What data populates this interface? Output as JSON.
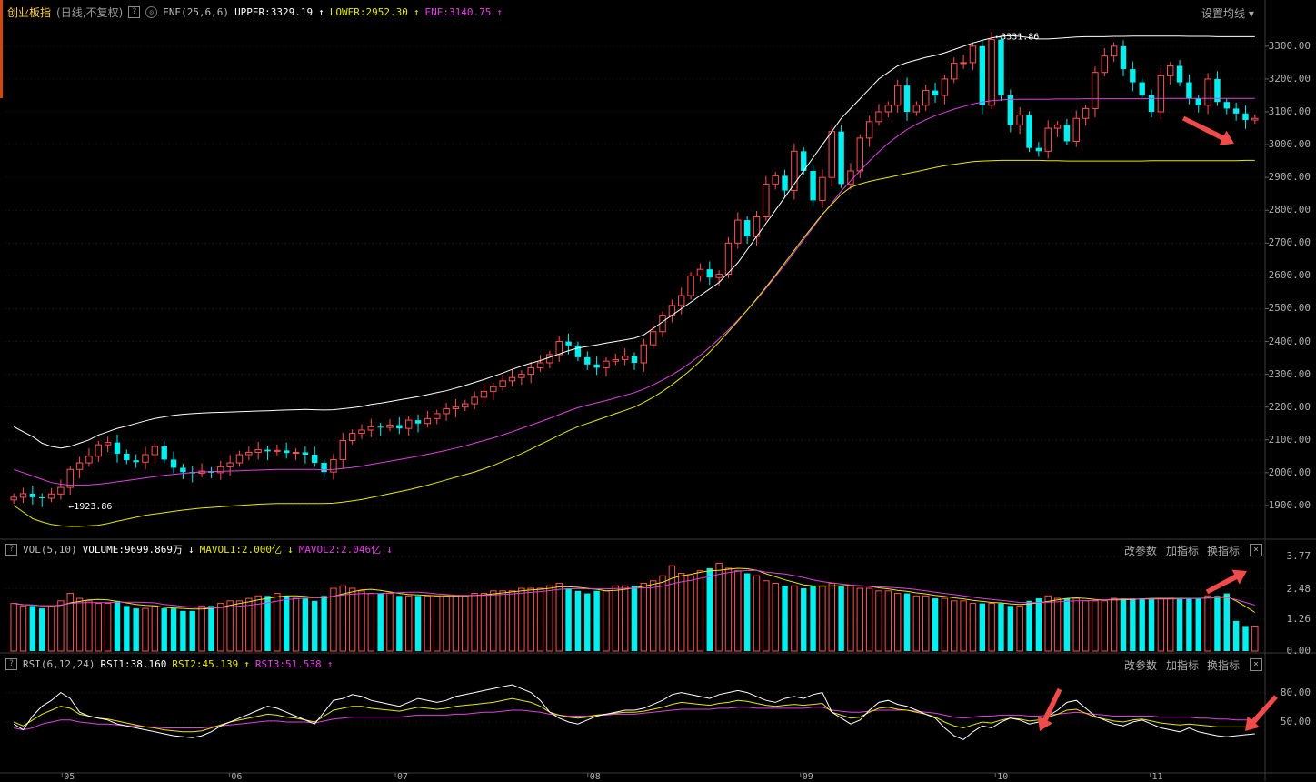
{
  "header": {
    "title": "创业板指",
    "subtitle": "(日线,不复权)",
    "indicator_name": "ENE(25,6,6)",
    "upper_label": "UPPER:3329.19",
    "lower_label": "LOWER:2952.30",
    "ene_label": "ENE:3140.75",
    "set_ma": "设置均线",
    "up_arrow": "↑",
    "down_arrow": "↓",
    "help": "?"
  },
  "vol_panel": {
    "name": "VOL(5,10)",
    "volume_label": "VOLUME:9699.869万",
    "mavol1_label": "MAVOL1:2.000亿",
    "mavol2_label": "MAVOL2:2.046亿",
    "tools": [
      "改参数",
      "加指标",
      "换指标"
    ],
    "close": "×",
    "y_ticks": [
      "3.77",
      "2.48",
      "1.26",
      "0.00"
    ]
  },
  "rsi_panel": {
    "name": "RSI(6,12,24)",
    "rsi1_label": "RSI1:38.160",
    "rsi2_label": "RSI2:45.139",
    "rsi3_label": "RSI3:51.538",
    "tools": [
      "改参数",
      "加指标",
      "换指标"
    ],
    "close": "×",
    "y_ticks": [
      "80.00",
      "50.00"
    ]
  },
  "price_y_ticks": [
    "3300.00",
    "3200.00",
    "3100.00",
    "3000.00",
    "2900.00",
    "2800.00",
    "2700.00",
    "2600.00",
    "2500.00",
    "2400.00",
    "2300.00",
    "2200.00",
    "2100.00",
    "2000.00",
    "1900.00"
  ],
  "x_ticks": [
    "05",
    "06",
    "07",
    "08",
    "09",
    "10",
    "11"
  ],
  "annotations": {
    "low_marker": "←1923.86",
    "high_marker": "←3331.86"
  },
  "colors": {
    "up": "#ff4f4f",
    "down": "#00f0f0",
    "upper": "#ffffff",
    "ene": "#e040e0",
    "lower": "#e8e800",
    "rsi1": "#ffffff",
    "rsi2": "#e8e800",
    "rsi3": "#e040e0",
    "grid": "#1e1e1e",
    "arrow": "#f04a4a"
  },
  "chart_data": {
    "type": "candlestick",
    "price_range": [
      1800,
      3380
    ],
    "x_months": [
      "05",
      "06",
      "07",
      "08",
      "09",
      "10",
      "11"
    ],
    "price_path": [
      1925,
      1936,
      1925,
      1922,
      1935,
      1955,
      2010,
      2030,
      2050,
      2085,
      2092,
      2058,
      2038,
      2032,
      2055,
      2080,
      2040,
      2015,
      2002,
      1998,
      2005,
      2000,
      2018,
      2030,
      2055,
      2062,
      2070,
      2065,
      2068,
      2060,
      2062,
      2055,
      2030,
      2002,
      2040,
      2098,
      2120,
      2130,
      2140,
      2138,
      2145,
      2135,
      2160,
      2150,
      2165,
      2180,
      2195,
      2200,
      2210,
      2230,
      2248,
      2262,
      2280,
      2290,
      2300,
      2320,
      2335,
      2360,
      2400,
      2388,
      2352,
      2330,
      2320,
      2340,
      2345,
      2355,
      2335,
      2390,
      2430,
      2480,
      2510,
      2540,
      2600,
      2620,
      2595,
      2605,
      2700,
      2770,
      2720,
      2780,
      2880,
      2905,
      2860,
      2980,
      2920,
      2830,
      2900,
      3040,
      2880,
      2920,
      3020,
      3070,
      3100,
      3120,
      3180,
      3100,
      3120,
      3165,
      3150,
      3200,
      3248,
      3250,
      3300,
      3120,
      3320,
      3150,
      3060,
      3090,
      2990,
      2980,
      3050,
      3060,
      3010,
      3080,
      3110,
      3220,
      3270,
      3300,
      3230,
      3190,
      3150,
      3100,
      3210,
      3240,
      3190,
      3140,
      3120,
      3200,
      3130,
      3110,
      3095,
      3075,
      3080
    ],
    "upper_path": [
      2140,
      2125,
      2110,
      2090,
      2080,
      2075,
      2080,
      2090,
      2100,
      2115,
      2125,
      2135,
      2142,
      2150,
      2158,
      2165,
      2170,
      2175,
      2178,
      2180,
      2182,
      2183,
      2184,
      2185,
      2186,
      2187,
      2188,
      2189,
      2190,
      2191,
      2192,
      2193,
      2192,
      2191,
      2192,
      2195,
      2198,
      2202,
      2208,
      2212,
      2217,
      2222,
      2227,
      2232,
      2238,
      2244,
      2250,
      2258,
      2266,
      2275,
      2284,
      2294,
      2304,
      2315,
      2325,
      2334,
      2342,
      2352,
      2362,
      2372,
      2380,
      2385,
      2390,
      2395,
      2400,
      2405,
      2410,
      2420,
      2440,
      2460,
      2480,
      2500,
      2520,
      2540,
      2560,
      2580,
      2610,
      2640,
      2680,
      2720,
      2760,
      2800,
      2840,
      2880,
      2920,
      2960,
      3000,
      3040,
      3080,
      3110,
      3140,
      3170,
      3200,
      3220,
      3240,
      3250,
      3258,
      3266,
      3272,
      3280,
      3290,
      3300,
      3310,
      3318,
      3325,
      3330,
      3332,
      3330,
      3326,
      3322,
      3322,
      3324,
      3326,
      3328,
      3329,
      3329,
      3329,
      3330,
      3330,
      3331,
      3331,
      3331,
      3331,
      3331,
      3331,
      3330,
      3330,
      3330,
      3329,
      3329,
      3329,
      3329,
      3329
    ],
    "ene_path": [
      2010,
      2000,
      1990,
      1980,
      1970,
      1965,
      1962,
      1962,
      1963,
      1965,
      1968,
      1972,
      1976,
      1980,
      1984,
      1988,
      1992,
      1995,
      1998,
      2000,
      2002,
      2003,
      2004,
      2005,
      2006,
      2007,
      2008,
      2009,
      2010,
      2010,
      2010,
      2010,
      2010,
      2009,
      2010,
      2013,
      2016,
      2020,
      2025,
      2030,
      2035,
      2040,
      2045,
      2050,
      2056,
      2062,
      2068,
      2075,
      2082,
      2090,
      2098,
      2106,
      2115,
      2125,
      2135,
      2145,
      2155,
      2166,
      2177,
      2188,
      2198,
      2206,
      2213,
      2220,
      2228,
      2236,
      2244,
      2255,
      2268,
      2282,
      2298,
      2316,
      2336,
      2358,
      2382,
      2408,
      2436,
      2465,
      2496,
      2528,
      2562,
      2598,
      2634,
      2672,
      2710,
      2748,
      2786,
      2822,
      2858,
      2890,
      2920,
      2950,
      2978,
      3004,
      3026,
      3046,
      3062,
      3076,
      3088,
      3098,
      3108,
      3116,
      3124,
      3130,
      3134,
      3136,
      3138,
      3138,
      3138,
      3138,
      3138,
      3139,
      3139,
      3139,
      3140,
      3140,
      3140,
      3140,
      3140,
      3140,
      3140,
      3141,
      3141,
      3141,
      3141,
      3141,
      3141,
      3141,
      3141,
      3141,
      3141,
      3141,
      3141
    ],
    "lower_path": [
      1900,
      1880,
      1860,
      1850,
      1842,
      1838,
      1836,
      1836,
      1838,
      1840,
      1845,
      1852,
      1858,
      1864,
      1870,
      1874,
      1878,
      1882,
      1886,
      1889,
      1892,
      1894,
      1896,
      1898,
      1900,
      1902,
      1904,
      1905,
      1906,
      1906,
      1906,
      1906,
      1906,
      1906,
      1907,
      1910,
      1914,
      1918,
      1924,
      1930,
      1936,
      1942,
      1948,
      1955,
      1962,
      1970,
      1978,
      1986,
      1994,
      2002,
      2012,
      2022,
      2034,
      2046,
      2058,
      2072,
      2086,
      2100,
      2114,
      2128,
      2140,
      2150,
      2160,
      2170,
      2180,
      2190,
      2200,
      2214,
      2230,
      2248,
      2268,
      2290,
      2314,
      2340,
      2368,
      2398,
      2430,
      2462,
      2496,
      2530,
      2566,
      2602,
      2640,
      2678,
      2716,
      2752,
      2788,
      2818,
      2848,
      2870,
      2880,
      2888,
      2894,
      2900,
      2906,
      2912,
      2918,
      2924,
      2930,
      2936,
      2940,
      2944,
      2948,
      2950,
      2951,
      2952,
      2952,
      2952,
      2952,
      2952,
      2951,
      2951,
      2950,
      2950,
      2950,
      2950,
      2950,
      2950,
      2950,
      2950,
      2950,
      2951,
      2951,
      2951,
      2951,
      2951,
      2951,
      2951,
      2951,
      2951,
      2951,
      2952,
      2952
    ],
    "volume_range": [
      0,
      3.77
    ],
    "volume_path": [
      1.9,
      1.8,
      1.8,
      1.7,
      1.8,
      2.0,
      2.3,
      2.1,
      2.0,
      1.9,
      1.9,
      2.0,
      1.8,
      1.7,
      1.7,
      1.8,
      1.7,
      1.7,
      1.6,
      1.6,
      1.8,
      1.8,
      1.9,
      2.0,
      2.0,
      2.1,
      2.2,
      2.2,
      2.3,
      2.2,
      2.1,
      2.1,
      2.0,
      2.2,
      2.5,
      2.6,
      2.5,
      2.4,
      2.3,
      2.3,
      2.3,
      2.2,
      2.2,
      2.2,
      2.2,
      2.2,
      2.2,
      2.2,
      2.2,
      2.3,
      2.3,
      2.4,
      2.4,
      2.4,
      2.5,
      2.5,
      2.5,
      2.6,
      2.7,
      2.5,
      2.4,
      2.3,
      2.4,
      2.4,
      2.6,
      2.6,
      2.6,
      2.7,
      2.8,
      3.0,
      3.4,
      3.1,
      3.0,
      3.2,
      3.3,
      3.5,
      3.3,
      3.2,
      3.1,
      3.0,
      2.8,
      2.7,
      2.6,
      2.6,
      2.5,
      2.6,
      2.6,
      2.7,
      2.6,
      2.6,
      2.5,
      2.5,
      2.4,
      2.4,
      2.3,
      2.3,
      2.2,
      2.2,
      2.1,
      2.1,
      2.0,
      2.0,
      1.9,
      1.9,
      1.9,
      1.9,
      1.8,
      1.8,
      2.0,
      2.1,
      2.2,
      2.1,
      2.1,
      2.1,
      2.0,
      2.0,
      2.0,
      2.1,
      2.1,
      2.1,
      2.1,
      2.1,
      2.1,
      2.1,
      2.1,
      2.1,
      2.1,
      2.2,
      2.2,
      2.3,
      1.2,
      1.0,
      1.0
    ],
    "rsi_range": [
      0,
      100
    ],
    "rsi1_path": [
      48,
      42,
      56,
      66,
      72,
      80,
      74,
      60,
      56,
      54,
      52,
      48,
      46,
      44,
      42,
      40,
      38,
      36,
      35,
      34,
      36,
      40,
      46,
      50,
      54,
      58,
      62,
      66,
      64,
      60,
      56,
      52,
      48,
      60,
      72,
      74,
      78,
      76,
      72,
      70,
      68,
      66,
      70,
      74,
      72,
      70,
      72,
      76,
      78,
      80,
      82,
      84,
      86,
      88,
      84,
      80,
      72,
      60,
      54,
      50,
      48,
      52,
      56,
      58,
      60,
      62,
      62,
      64,
      68,
      72,
      78,
      80,
      78,
      76,
      74,
      78,
      80,
      82,
      80,
      76,
      72,
      70,
      74,
      76,
      74,
      78,
      80,
      60,
      54,
      48,
      52,
      62,
      70,
      72,
      68,
      66,
      62,
      58,
      54,
      44,
      36,
      32,
      40,
      46,
      44,
      50,
      54,
      52,
      48,
      50,
      56,
      62,
      70,
      72,
      64,
      56,
      52,
      48,
      46,
      50,
      52,
      48,
      44,
      42,
      40,
      44,
      40,
      38,
      36,
      35,
      36,
      37,
      38
    ],
    "rsi2_path": [
      50,
      46,
      52,
      58,
      62,
      66,
      64,
      58,
      56,
      54,
      53,
      51,
      49,
      47,
      45,
      44,
      42,
      41,
      40,
      40,
      41,
      44,
      47,
      50,
      52,
      54,
      56,
      58,
      57,
      55,
      54,
      52,
      50,
      56,
      62,
      64,
      66,
      66,
      64,
      63,
      62,
      61,
      63,
      65,
      64,
      63,
      64,
      66,
      67,
      68,
      69,
      70,
      72,
      74,
      72,
      70,
      66,
      60,
      57,
      55,
      54,
      55,
      57,
      58,
      59,
      60,
      60,
      61,
      63,
      65,
      68,
      70,
      69,
      68,
      67,
      69,
      70,
      72,
      71,
      69,
      67,
      66,
      67,
      68,
      67,
      68,
      69,
      60,
      57,
      54,
      55,
      60,
      64,
      65,
      63,
      62,
      60,
      58,
      55,
      50,
      46,
      44,
      47,
      50,
      49,
      52,
      54,
      53,
      51,
      52,
      55,
      58,
      62,
      63,
      59,
      55,
      53,
      51,
      50,
      52,
      53,
      51,
      49,
      48,
      47,
      48,
      47,
      46,
      45,
      45,
      45,
      45,
      45
    ],
    "rsi3_path": [
      44,
      42,
      44,
      48,
      50,
      52,
      52,
      50,
      49,
      48,
      48,
      47,
      46,
      46,
      45,
      45,
      44,
      44,
      44,
      44,
      44,
      45,
      46,
      47,
      48,
      49,
      50,
      51,
      51,
      50,
      50,
      50,
      49,
      51,
      53,
      54,
      55,
      55,
      55,
      55,
      55,
      55,
      56,
      57,
      57,
      57,
      57,
      58,
      58,
      59,
      60,
      60,
      61,
      62,
      62,
      61,
      60,
      58,
      57,
      56,
      56,
      56,
      57,
      57,
      58,
      58,
      58,
      59,
      60,
      61,
      62,
      63,
      63,
      63,
      63,
      64,
      64,
      65,
      65,
      64,
      64,
      64,
      64,
      64,
      64,
      65,
      65,
      62,
      61,
      60,
      60,
      61,
      62,
      62,
      62,
      62,
      61,
      60,
      59,
      57,
      55,
      54,
      55,
      56,
      56,
      57,
      57,
      57,
      56,
      56,
      57,
      58,
      59,
      60,
      59,
      58,
      57,
      56,
      56,
      56,
      56,
      56,
      55,
      55,
      55,
      55,
      54,
      54,
      53,
      53,
      52,
      52,
      52
    ]
  }
}
